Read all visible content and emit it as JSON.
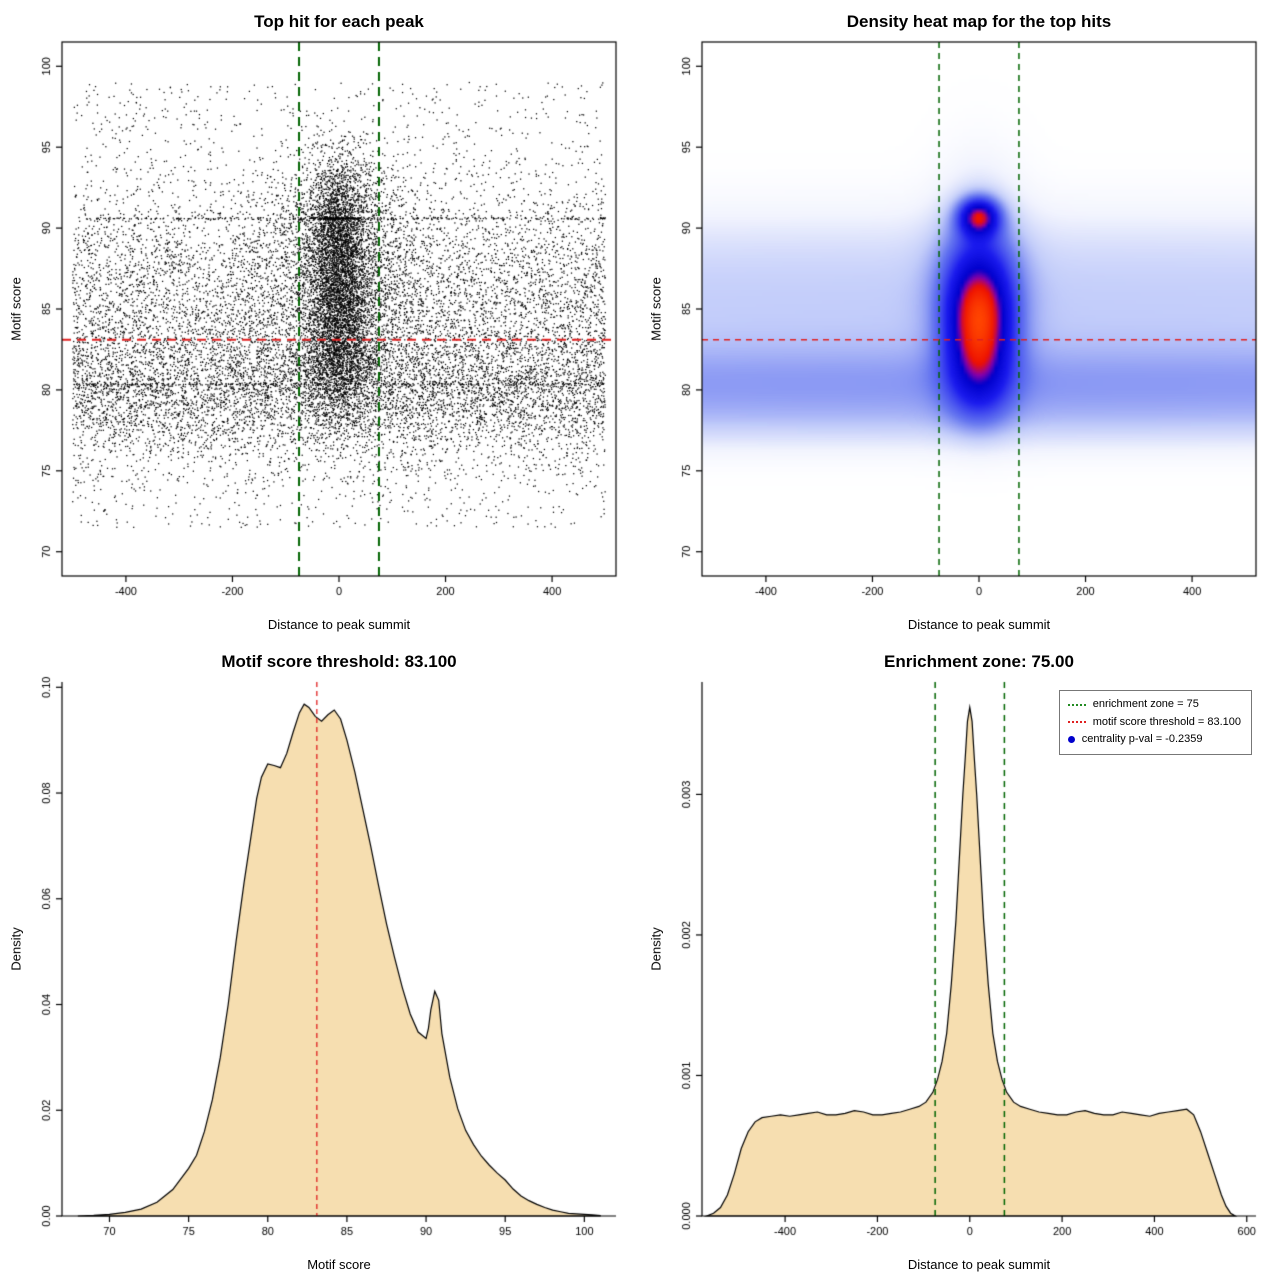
{
  "chart_data": [
    {
      "type": "scatter",
      "title": "Top hit for each peak",
      "xlabel": "Distance to peak summit",
      "ylabel": "Motif score",
      "xlim": [
        -520,
        520
      ],
      "ylim": [
        68.5,
        101.5
      ],
      "xticks": [
        -400,
        -200,
        0,
        200,
        400
      ],
      "xtick_labels": [
        "-400",
        "-200",
        "0",
        "200",
        "400"
      ],
      "yticks": [
        70,
        75,
        80,
        85,
        90,
        95,
        100
      ],
      "ytick_labels": [
        "70",
        "75",
        "80",
        "85",
        "90",
        "95",
        "100"
      ],
      "frame": "box",
      "point_color": "#000000",
      "hlines": [
        {
          "y": 83.1,
          "color": "#e02020",
          "width": 1.8,
          "dash": [
            9,
            6
          ]
        }
      ],
      "vlines": [
        {
          "x": -75,
          "color": "#006400",
          "width": 2,
          "dash": [
            9,
            6
          ]
        },
        {
          "x": 75,
          "color": "#006400",
          "width": 2,
          "dash": [
            9,
            6
          ]
        }
      ],
      "distribution_model": {
        "seed": 7,
        "clip_y": [
          69.3,
          100.3
        ],
        "background": {
          "n": 13000,
          "x_range": [
            -500,
            500
          ],
          "y_components": [
            {
              "type": "gauss",
              "mu": 80.5,
              "sigma": 1.8,
              "w": 0.3
            },
            {
              "type": "gauss",
              "mu": 84.5,
              "sigma": 2.6,
              "w": 0.26
            },
            {
              "type": "gauss",
              "mu": 88.5,
              "sigma": 2.3,
              "w": 0.12
            },
            {
              "type": "gauss",
              "mu": 78.0,
              "sigma": 1.6,
              "w": 0.12
            },
            {
              "type": "uniform",
              "lo": 71.5,
              "hi": 99.0,
              "w": 0.2
            }
          ]
        },
        "cluster": {
          "n": 7000,
          "x_sigmas": [
            [
              30,
              0.7
            ],
            [
              80,
              0.3
            ]
          ],
          "y_components": [
            {
              "type": "gauss",
              "mu": 85.3,
              "sigma": 3.0,
              "w": 0.5
            },
            {
              "type": "gauss",
              "mu": 89.0,
              "sigma": 2.4,
              "w": 0.25
            },
            {
              "type": "gauss",
              "mu": 91.8,
              "sigma": 1.8,
              "w": 0.12
            },
            {
              "type": "gauss",
              "mu": 81.5,
              "sigma": 2.2,
              "w": 0.13
            }
          ]
        },
        "stripes": [
          {
            "y": 80.35,
            "n": 260,
            "x": [
              "uniform",
              -500,
              500
            ]
          },
          {
            "y": 90.6,
            "n": 240,
            "x": [
              "uniform",
              -500,
              500
            ]
          },
          {
            "y": 90.6,
            "n": 160,
            "x": [
              "gauss",
              0,
              30
            ]
          }
        ]
      }
    },
    {
      "type": "heatmap",
      "title": "Density heat map for the top hits",
      "xlabel": "Distance to peak summit",
      "ylabel": "Motif score",
      "xlim": [
        -520,
        520
      ],
      "ylim": [
        68.5,
        101.5
      ],
      "xticks": [
        -400,
        -200,
        0,
        200,
        400
      ],
      "xtick_labels": [
        "-400",
        "-200",
        "0",
        "200",
        "400"
      ],
      "yticks": [
        70,
        75,
        80,
        85,
        90,
        95,
        100
      ],
      "ytick_labels": [
        "70",
        "75",
        "80",
        "85",
        "90",
        "95",
        "100"
      ],
      "frame": "box",
      "hlines": [
        {
          "y": 83.1,
          "color": "#e02020",
          "width": 1.3,
          "dash": [
            6,
            5
          ]
        }
      ],
      "vlines": [
        {
          "x": -75,
          "color": "#006400",
          "width": 1.5,
          "dash": [
            6,
            5
          ]
        },
        {
          "x": 75,
          "color": "#006400",
          "width": 1.5,
          "dash": [
            6,
            5
          ]
        }
      ],
      "density_components": [
        {
          "cx": 0,
          "sx": 42,
          "cy": 84.3,
          "sy": 2.6,
          "w": 1.0
        },
        {
          "cx": 0,
          "sx": 26,
          "cy": 90.7,
          "sy": 0.8,
          "w": 1.0
        },
        {
          "cx": 0,
          "sx": 55,
          "cy": 87.0,
          "sy": 4.0,
          "w": 0.4
        },
        {
          "cx": 0,
          "sx": 42,
          "cy": 80.5,
          "sy": 2.0,
          "w": 0.3
        },
        {
          "cx": 0,
          "sx": 3000,
          "cy": 80.3,
          "sy": 1.9,
          "w": 0.33
        },
        {
          "cx": 0,
          "sx": 3000,
          "cy": 84.8,
          "sy": 2.6,
          "w": 0.22
        },
        {
          "cx": 0,
          "sx": 3000,
          "cy": 88.8,
          "sy": 2.2,
          "w": 0.12
        },
        {
          "cx": 0,
          "sx": 3000,
          "cy": 77.8,
          "sy": 1.3,
          "w": 0.12
        }
      ],
      "colormap": [
        [
          0.0,
          "#ffffff"
        ],
        [
          0.06,
          "#f2f4fe"
        ],
        [
          0.16,
          "#c3cdfa"
        ],
        [
          0.3,
          "#6677f0"
        ],
        [
          0.5,
          "#1a1aee"
        ],
        [
          0.68,
          "#0000cc"
        ],
        [
          0.76,
          "#8800aa"
        ],
        [
          0.84,
          "#ee1100"
        ],
        [
          1.0,
          "#ff4400"
        ]
      ]
    },
    {
      "type": "area",
      "title": "Motif score threshold: 83.100",
      "xlabel": "Motif score",
      "ylabel": "Density",
      "xlim": [
        67,
        102
      ],
      "ylim": [
        0,
        0.101
      ],
      "xticks": [
        70,
        75,
        80,
        85,
        90,
        95,
        100
      ],
      "xtick_labels": [
        "70",
        "75",
        "80",
        "85",
        "90",
        "95",
        "100"
      ],
      "yticks": [
        0,
        0.02,
        0.04,
        0.06,
        0.08,
        0.1
      ],
      "ytick_labels": [
        "0.00",
        "0.02",
        "0.04",
        "0.06",
        "0.08",
        "0.10"
      ],
      "frame": "L",
      "fill": "#f6deb0",
      "stroke": "#000000",
      "vlines": [
        {
          "x": 83.1,
          "color": "#e02020",
          "width": 1.3,
          "dash": [
            5,
            4
          ]
        }
      ],
      "curve": [
        [
          68,
          0
        ],
        [
          69,
          0.0001
        ],
        [
          70,
          0.0003
        ],
        [
          71,
          0.0007
        ],
        [
          72,
          0.0013
        ],
        [
          73,
          0.0026
        ],
        [
          74,
          0.005
        ],
        [
          75,
          0.009
        ],
        [
          75.5,
          0.0115
        ],
        [
          76,
          0.016
        ],
        [
          76.5,
          0.022
        ],
        [
          77,
          0.03
        ],
        [
          77.5,
          0.04
        ],
        [
          78,
          0.052
        ],
        [
          78.5,
          0.063
        ],
        [
          79,
          0.073
        ],
        [
          79.3,
          0.079
        ],
        [
          79.6,
          0.083
        ],
        [
          80,
          0.0855
        ],
        [
          80.4,
          0.0852
        ],
        [
          80.8,
          0.0848
        ],
        [
          81.2,
          0.0875
        ],
        [
          81.6,
          0.0915
        ],
        [
          82,
          0.0952
        ],
        [
          82.3,
          0.0968
        ],
        [
          82.6,
          0.0962
        ],
        [
          83,
          0.0945
        ],
        [
          83.4,
          0.0936
        ],
        [
          83.8,
          0.0948
        ],
        [
          84.2,
          0.0957
        ],
        [
          84.6,
          0.094
        ],
        [
          85,
          0.09
        ],
        [
          85.5,
          0.084
        ],
        [
          86,
          0.077
        ],
        [
          86.5,
          0.07
        ],
        [
          87,
          0.0625
        ],
        [
          87.5,
          0.0553
        ],
        [
          88,
          0.049
        ],
        [
          88.5,
          0.0432
        ],
        [
          89,
          0.0382
        ],
        [
          89.5,
          0.0348
        ],
        [
          90,
          0.0336
        ],
        [
          90.15,
          0.0355
        ],
        [
          90.3,
          0.039
        ],
        [
          90.55,
          0.0425
        ],
        [
          90.8,
          0.0408
        ],
        [
          91,
          0.0345
        ],
        [
          91.5,
          0.0262
        ],
        [
          92,
          0.0203
        ],
        [
          92.5,
          0.0162
        ],
        [
          93,
          0.0135
        ],
        [
          93.5,
          0.0113
        ],
        [
          94,
          0.0096
        ],
        [
          94.5,
          0.0081
        ],
        [
          95,
          0.0068
        ],
        [
          95.5,
          0.0051
        ],
        [
          96,
          0.0038
        ],
        [
          96.5,
          0.0029
        ],
        [
          97,
          0.0022
        ],
        [
          97.5,
          0.0016
        ],
        [
          98,
          0.0011
        ],
        [
          98.5,
          0.0008
        ],
        [
          99,
          0.0005
        ],
        [
          99.5,
          0.0004
        ],
        [
          100,
          0.0003
        ],
        [
          100.5,
          0.0002
        ],
        [
          101,
          0.0001
        ]
      ]
    },
    {
      "type": "area",
      "title": "Enrichment zone: 75.00",
      "xlabel": "Distance to peak summit",
      "ylabel": "Density",
      "xlim": [
        -580,
        620
      ],
      "ylim": [
        0,
        0.0038
      ],
      "xticks": [
        -400,
        -200,
        0,
        200,
        400,
        600
      ],
      "xtick_labels": [
        "-400",
        "-200",
        "0",
        "200",
        "400",
        "600"
      ],
      "yticks": [
        0,
        0.001,
        0.002,
        0.003
      ],
      "ytick_labels": [
        "0.000",
        "0.001",
        "0.002",
        "0.003"
      ],
      "frame": "L",
      "fill": "#f6deb0",
      "stroke": "#000000",
      "vlines": [
        {
          "x": -75,
          "color": "#006400",
          "width": 1.5,
          "dash": [
            6,
            5
          ]
        },
        {
          "x": 75,
          "color": "#006400",
          "width": 1.5,
          "dash": [
            6,
            5
          ]
        }
      ],
      "curve": [
        [
          -570,
          0
        ],
        [
          -555,
          2e-05
        ],
        [
          -540,
          6e-05
        ],
        [
          -525,
          0.00015
        ],
        [
          -510,
          0.0003
        ],
        [
          -495,
          0.00048
        ],
        [
          -480,
          0.0006
        ],
        [
          -465,
          0.00067
        ],
        [
          -450,
          0.0007
        ],
        [
          -430,
          0.00071
        ],
        [
          -410,
          0.00072
        ],
        [
          -390,
          0.00071
        ],
        [
          -370,
          0.00072
        ],
        [
          -350,
          0.00073
        ],
        [
          -330,
          0.00074
        ],
        [
          -310,
          0.00072
        ],
        [
          -290,
          0.00072
        ],
        [
          -270,
          0.00073
        ],
        [
          -250,
          0.00075
        ],
        [
          -230,
          0.00074
        ],
        [
          -210,
          0.00072
        ],
        [
          -190,
          0.00072
        ],
        [
          -170,
          0.00073
        ],
        [
          -150,
          0.00074
        ],
        [
          -130,
          0.00076
        ],
        [
          -110,
          0.00078
        ],
        [
          -95,
          0.00081
        ],
        [
          -80,
          0.00088
        ],
        [
          -70,
          0.00097
        ],
        [
          -60,
          0.0011
        ],
        [
          -50,
          0.0013
        ],
        [
          -40,
          0.00165
        ],
        [
          -30,
          0.0021
        ],
        [
          -25,
          0.0024
        ],
        [
          -20,
          0.0027
        ],
        [
          -15,
          0.003
        ],
        [
          -10,
          0.00325
        ],
        [
          -5,
          0.00352
        ],
        [
          0,
          0.00362
        ],
        [
          5,
          0.00352
        ],
        [
          10,
          0.00325
        ],
        [
          15,
          0.003
        ],
        [
          20,
          0.0027
        ],
        [
          25,
          0.0024
        ],
        [
          30,
          0.0021
        ],
        [
          40,
          0.00165
        ],
        [
          50,
          0.0013
        ],
        [
          60,
          0.0011
        ],
        [
          70,
          0.00097
        ],
        [
          80,
          0.00088
        ],
        [
          95,
          0.00081
        ],
        [
          110,
          0.00078
        ],
        [
          130,
          0.00076
        ],
        [
          150,
          0.00074
        ],
        [
          170,
          0.00073
        ],
        [
          190,
          0.00072
        ],
        [
          210,
          0.00072
        ],
        [
          230,
          0.00074
        ],
        [
          250,
          0.00075
        ],
        [
          270,
          0.00073
        ],
        [
          290,
          0.00072
        ],
        [
          310,
          0.00072
        ],
        [
          330,
          0.00074
        ],
        [
          350,
          0.00073
        ],
        [
          370,
          0.00072
        ],
        [
          390,
          0.00071
        ],
        [
          410,
          0.00073
        ],
        [
          430,
          0.00074
        ],
        [
          450,
          0.00075
        ],
        [
          470,
          0.00076
        ],
        [
          485,
          0.00072
        ],
        [
          500,
          0.0006
        ],
        [
          515,
          0.00045
        ],
        [
          530,
          0.0003
        ],
        [
          545,
          0.00015
        ],
        [
          555,
          7e-05
        ],
        [
          565,
          2e-05
        ],
        [
          575,
          0
        ]
      ],
      "legend": [
        {
          "marker": "dotted-line",
          "color": "#228B22",
          "label": "enrichment zone = 75"
        },
        {
          "marker": "dotted-line",
          "color": "#e02020",
          "label": "motif score threshold = 83.100"
        },
        {
          "marker": "point",
          "color": "#0000cc",
          "label": "centrality p-val = -0.2359"
        }
      ]
    }
  ]
}
